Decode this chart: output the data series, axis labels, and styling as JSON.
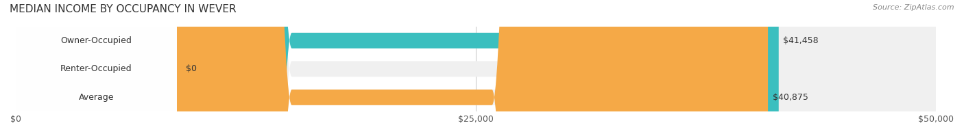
{
  "title": "MEDIAN INCOME BY OCCUPANCY IN WEVER",
  "source": "Source: ZipAtlas.com",
  "categories": [
    "Owner-Occupied",
    "Renter-Occupied",
    "Average"
  ],
  "values": [
    41458,
    0,
    40875
  ],
  "labels": [
    "$41,458",
    "$0",
    "$40,875"
  ],
  "bar_colors": [
    "#3bbfbf",
    "#c9a8d4",
    "#f5a947"
  ],
  "bar_bg_color": "#f0f0f0",
  "xmax": 50000,
  "xticks": [
    0,
    25000,
    50000
  ],
  "xtick_labels": [
    "$0",
    "$25,000",
    "$50,000"
  ],
  "title_fontsize": 11,
  "source_fontsize": 8,
  "label_fontsize": 9,
  "bar_label_fontsize": 9,
  "figsize": [
    14.06,
    1.96
  ],
  "dpi": 100
}
